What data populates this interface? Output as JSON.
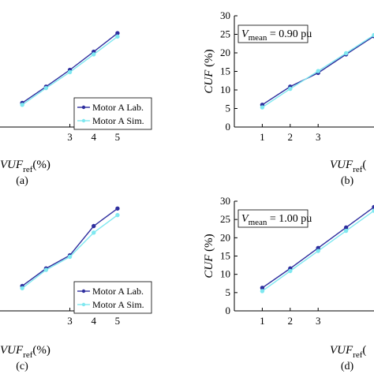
{
  "chart_data": [
    {
      "panel": "a",
      "type": "line",
      "panel_label": "(a)",
      "x": [
        1,
        2,
        3,
        4,
        5
      ],
      "xlim": [
        0,
        5.4
      ],
      "ylim": [
        0,
        30
      ],
      "xticks": [
        3,
        4,
        5
      ],
      "xlabel": {
        "main": "VUF",
        "sub": "ref",
        "unit": "(%)"
      },
      "legend": {
        "position": "bottom-right"
      },
      "series": [
        {
          "name": "Motor A Lab.",
          "color": "#2e2e9e",
          "values": [
            6.5,
            10.9,
            15.4,
            20.3,
            25.3
          ]
        },
        {
          "name": "Motor A Sim.",
          "color": "#7fe8f0",
          "values": [
            6.0,
            10.5,
            14.8,
            19.6,
            24.4
          ]
        }
      ]
    },
    {
      "panel": "b",
      "type": "line",
      "panel_label": "(b)",
      "x": [
        1,
        2,
        3,
        4,
        5
      ],
      "xlim": [
        0,
        5
      ],
      "ylim": [
        0,
        30
      ],
      "xticks": [
        1,
        2,
        3
      ],
      "yticks": [
        0,
        5,
        10,
        15,
        20,
        25,
        30
      ],
      "ylabel": {
        "main": "CUF",
        "unit": "(%)"
      },
      "xlabel": {
        "main": "VUF",
        "sub": "ref",
        "unit": "("
      },
      "annotation": {
        "prefix": "V",
        "sub": "mean",
        "rest": " = 0.90 pu"
      },
      "series": [
        {
          "name": "Motor A Lab.",
          "color": "#2e2e9e",
          "values": [
            6.0,
            10.9,
            14.6,
            19.6,
            24.5
          ]
        },
        {
          "name": "Motor A Sim.",
          "color": "#7fe8f0",
          "values": [
            5.3,
            10.3,
            15.1,
            19.9,
            24.8
          ]
        }
      ]
    },
    {
      "panel": "c",
      "type": "line",
      "panel_label": "(c)",
      "x": [
        1,
        2,
        3,
        4,
        5
      ],
      "xlim": [
        0,
        5.4
      ],
      "ylim": [
        0,
        30
      ],
      "xticks": [
        3,
        4,
        5
      ],
      "xlabel": {
        "main": "VUF",
        "sub": "ref",
        "unit": "(%)"
      },
      "legend": {
        "position": "bottom-right"
      },
      "series": [
        {
          "name": "Motor A Lab.",
          "color": "#2e2e9e",
          "values": [
            6.8,
            11.6,
            15.2,
            23.2,
            28.0
          ]
        },
        {
          "name": "Motor A Sim.",
          "color": "#7fe8f0",
          "values": [
            6.2,
            11.2,
            14.8,
            21.4,
            26.2
          ]
        }
      ]
    },
    {
      "panel": "d",
      "type": "line",
      "panel_label": "(d)",
      "x": [
        1,
        2,
        3,
        4,
        5
      ],
      "xlim": [
        0,
        5
      ],
      "ylim": [
        0,
        30
      ],
      "xticks": [
        1,
        2,
        3
      ],
      "yticks": [
        0,
        5,
        10,
        15,
        20,
        25,
        30
      ],
      "ylabel": {
        "main": "CUF",
        "unit": "(%)"
      },
      "xlabel": {
        "main": "VUF",
        "sub": "ref",
        "unit": "("
      },
      "annotation": {
        "prefix": "V",
        "sub": "mean",
        "rest": " = 1.00 pu"
      },
      "series": [
        {
          "name": "Motor A Lab.",
          "color": "#2e2e9e",
          "values": [
            6.3,
            11.6,
            17.2,
            22.8,
            28.4
          ]
        },
        {
          "name": "Motor A Sim.",
          "color": "#7fe8f0",
          "values": [
            5.4,
            10.9,
            16.4,
            21.9,
            27.4
          ]
        }
      ]
    }
  ]
}
